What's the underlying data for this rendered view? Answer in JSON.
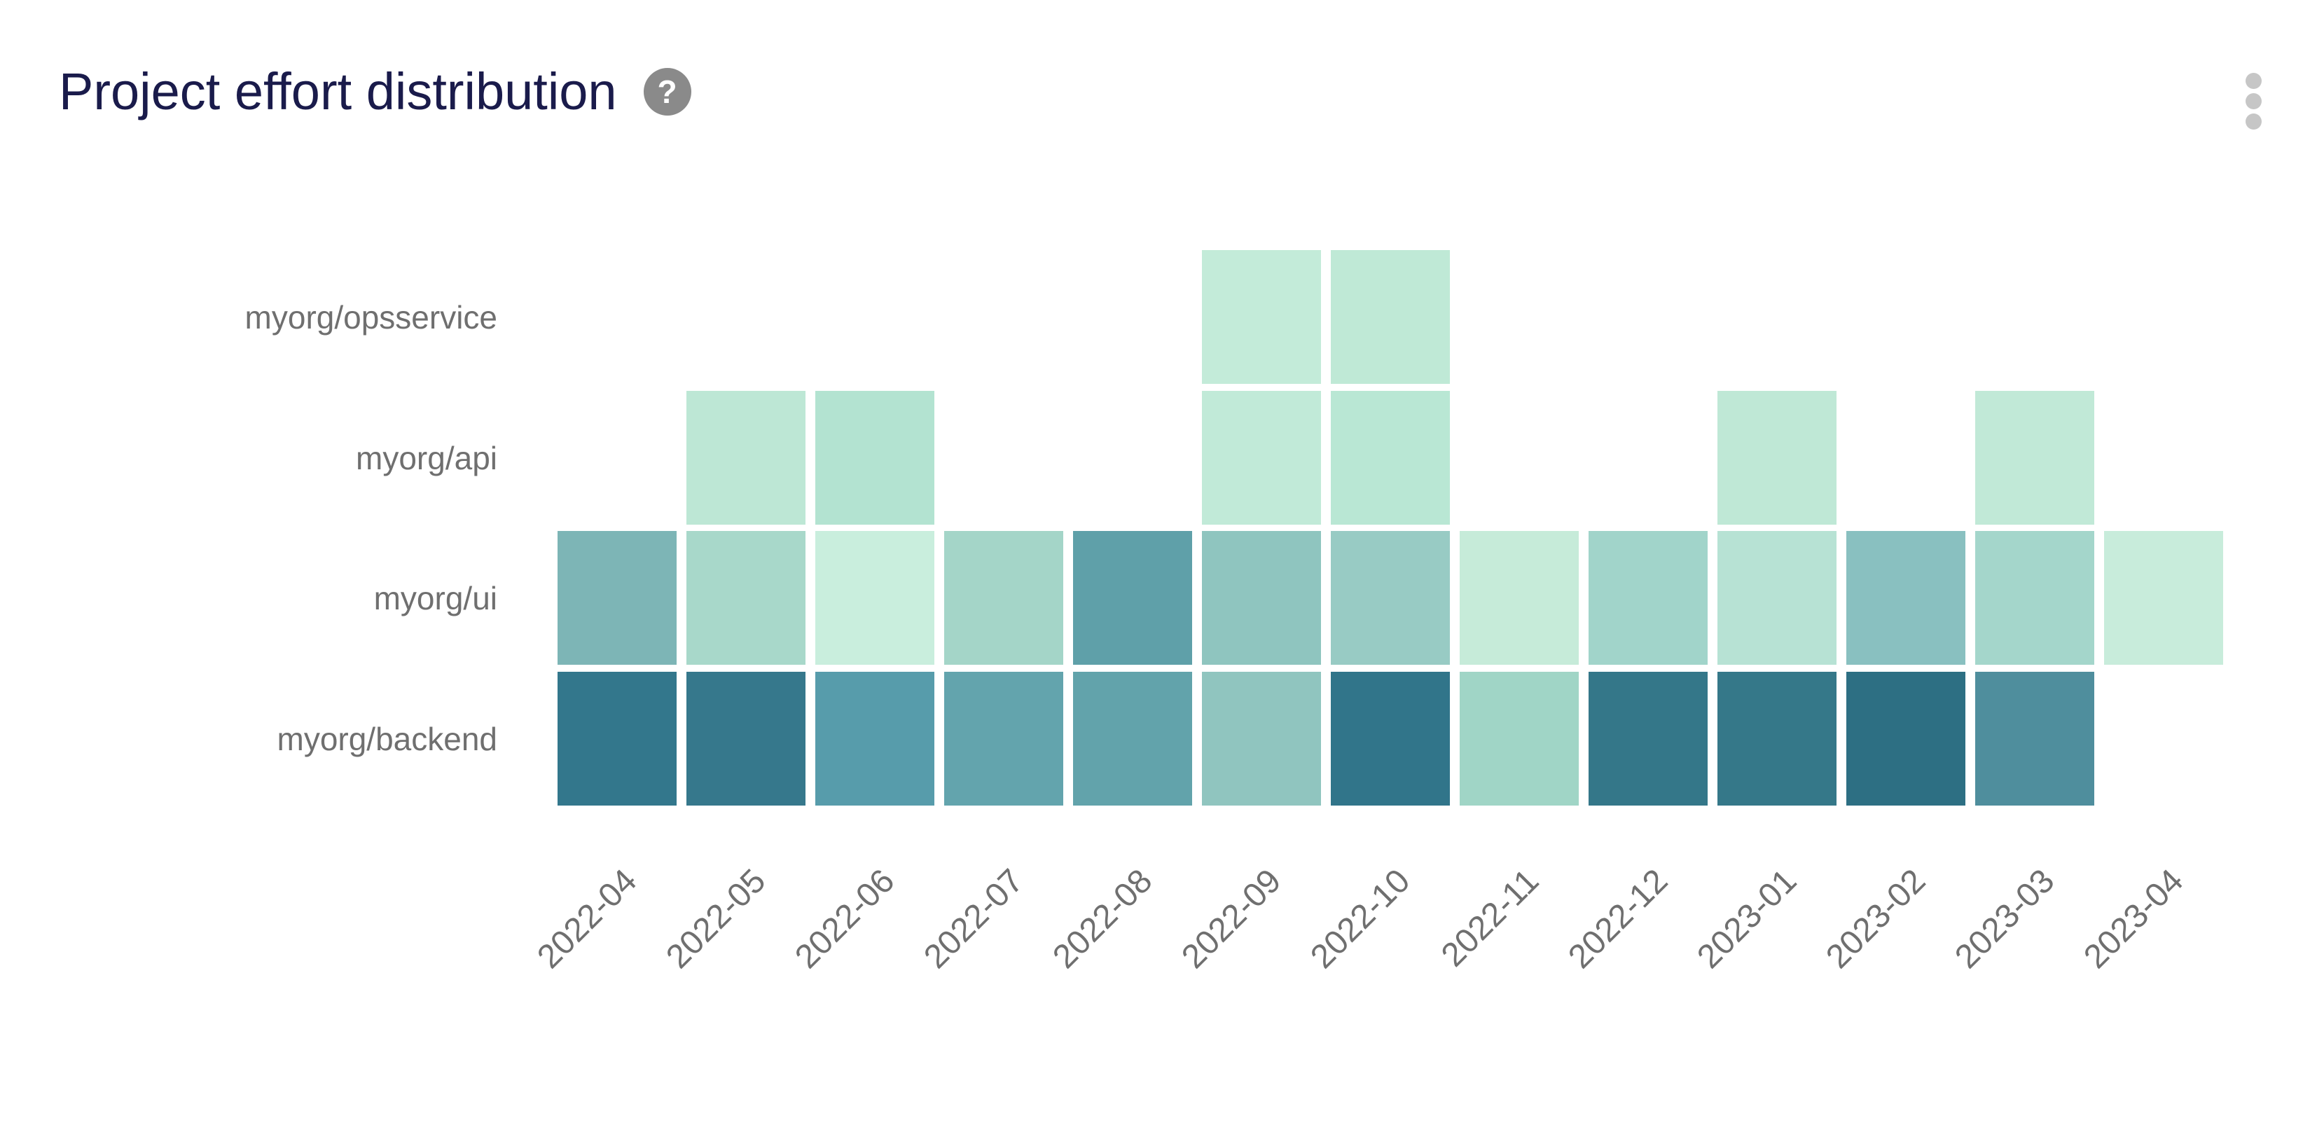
{
  "header": {
    "title": "Project effort distribution",
    "help_icon_glyph": "?"
  },
  "chart_data": {
    "type": "heatmap",
    "title": "Project effort distribution",
    "x_categories": [
      "2022-04",
      "2022-05",
      "2022-06",
      "2022-07",
      "2022-08",
      "2022-09",
      "2022-10",
      "2022-11",
      "2022-12",
      "2023-01",
      "2023-02",
      "2023-03",
      "2023-04"
    ],
    "y_categories": [
      "myorg/opsservice",
      "myorg/api",
      "myorg/ui",
      "myorg/backend"
    ],
    "xlabel_rotation_degrees": 45,
    "grid": "off",
    "legend": "none",
    "colormap": {
      "low_color": "#c9eedd",
      "high_color": "#2d6f83",
      "meaning": "darker = larger share of effort"
    },
    "series": [
      {
        "project": "myorg/opsservice",
        "cells": [
          {
            "month": "2022-09",
            "value": 0.08,
            "color": "#c3ebd9"
          },
          {
            "month": "2022-10",
            "value": 0.1,
            "color": "#bfe9d6"
          }
        ]
      },
      {
        "project": "myorg/api",
        "cells": [
          {
            "month": "2022-05",
            "value": 0.12,
            "color": "#bde7d5"
          },
          {
            "month": "2022-06",
            "value": 0.15,
            "color": "#b3e3d1"
          },
          {
            "month": "2022-09",
            "value": 0.09,
            "color": "#c1ead8"
          },
          {
            "month": "2022-10",
            "value": 0.13,
            "color": "#b9e7d4"
          },
          {
            "month": "2023-01",
            "value": 0.1,
            "color": "#bfe8d6"
          },
          {
            "month": "2023-03",
            "value": 0.09,
            "color": "#c1e9d7"
          }
        ]
      },
      {
        "project": "myorg/ui",
        "cells": [
          {
            "month": "2022-04",
            "value": 0.45,
            "color": "#7db5b6"
          },
          {
            "month": "2022-05",
            "value": 0.24,
            "color": "#a8d8ca"
          },
          {
            "month": "2022-06",
            "value": 0.05,
            "color": "#c9eedd"
          },
          {
            "month": "2022-07",
            "value": 0.26,
            "color": "#a4d5c8"
          },
          {
            "month": "2022-08",
            "value": 0.58,
            "color": "#5fa0a9"
          },
          {
            "month": "2022-09",
            "value": 0.33,
            "color": "#8fc5bf"
          },
          {
            "month": "2022-10",
            "value": 0.3,
            "color": "#98cbc4"
          },
          {
            "month": "2022-11",
            "value": 0.07,
            "color": "#c6ebd9"
          },
          {
            "month": "2022-12",
            "value": 0.27,
            "color": "#a1d4ca"
          },
          {
            "month": "2023-01",
            "value": 0.16,
            "color": "#b7e2d4"
          },
          {
            "month": "2023-02",
            "value": 0.38,
            "color": "#89c0c0"
          },
          {
            "month": "2023-03",
            "value": 0.25,
            "color": "#a4d6cb"
          },
          {
            "month": "2023-04",
            "value": 0.05,
            "color": "#c8ecdb"
          }
        ]
      },
      {
        "project": "myorg/backend",
        "cells": [
          {
            "month": "2022-04",
            "value": 0.85,
            "color": "#33778c"
          },
          {
            "month": "2022-05",
            "value": 0.84,
            "color": "#36788c"
          },
          {
            "month": "2022-06",
            "value": 0.6,
            "color": "#579cab"
          },
          {
            "month": "2022-07",
            "value": 0.54,
            "color": "#63a4ad"
          },
          {
            "month": "2022-08",
            "value": 0.55,
            "color": "#62a3ab"
          },
          {
            "month": "2022-09",
            "value": 0.32,
            "color": "#90c5bf"
          },
          {
            "month": "2022-10",
            "value": 0.87,
            "color": "#31758a"
          },
          {
            "month": "2022-11",
            "value": 0.25,
            "color": "#a0d5c6"
          },
          {
            "month": "2022-12",
            "value": 0.86,
            "color": "#347789"
          },
          {
            "month": "2023-01",
            "value": 0.85,
            "color": "#357889"
          },
          {
            "month": "2023-02",
            "value": 0.93,
            "color": "#2d6f83"
          },
          {
            "month": "2023-03",
            "value": 0.68,
            "color": "#4f8e9d"
          }
        ]
      }
    ]
  },
  "colors": {
    "title": "#1a1b4b",
    "axis_label": "#6f6f6f",
    "help_icon_bg": "#8a8a8a",
    "kebab_dot": "#c6c6c6",
    "background": "#ffffff"
  }
}
